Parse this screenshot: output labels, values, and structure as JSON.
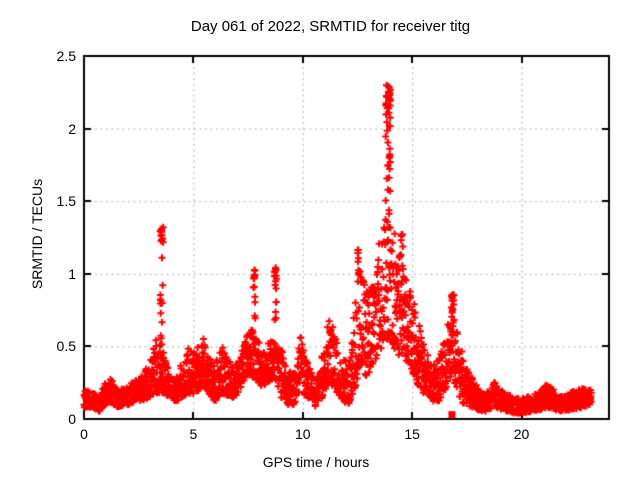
{
  "chart_data": {
    "type": "scatter",
    "title": "Day 061 of 2022, SRMTID for receiver titg",
    "xlabel": "GPS time / hours",
    "ylabel": "SRMTID / TECUs",
    "xlim": [
      0,
      24
    ],
    "ylim": [
      0,
      2.5
    ],
    "xticks": [
      0,
      5,
      10,
      15,
      20
    ],
    "yticks": [
      0,
      0.5,
      1,
      1.5,
      2,
      2.5
    ],
    "grid": {
      "visible": true,
      "style": "dashed"
    },
    "legend": "none",
    "colors": {
      "marker": "#ff0000",
      "grid": "#b0b0b0",
      "border": "#000000",
      "background": "#ffffff",
      "text": "#000000"
    },
    "x_start": 0,
    "x_end": 23.2,
    "sample_step_hours": 0.01,
    "seed": 20220611,
    "series": [
      {
        "name": "SRMTID",
        "marker": "plus",
        "marker_size_px": 7,
        "envelope": [
          [
            0.0,
            0.08,
            0.2
          ],
          [
            0.4,
            0.08,
            0.18
          ],
          [
            0.7,
            0.05,
            0.15
          ],
          [
            1.0,
            0.1,
            0.26
          ],
          [
            1.2,
            0.12,
            0.3
          ],
          [
            1.5,
            0.08,
            0.2
          ],
          [
            1.9,
            0.09,
            0.22
          ],
          [
            2.3,
            0.12,
            0.26
          ],
          [
            2.7,
            0.12,
            0.3
          ],
          [
            3.0,
            0.15,
            0.42
          ],
          [
            3.3,
            0.18,
            0.55
          ],
          [
            3.6,
            0.18,
            0.48
          ],
          [
            3.9,
            0.14,
            0.32
          ],
          [
            4.2,
            0.12,
            0.3
          ],
          [
            4.5,
            0.15,
            0.42
          ],
          [
            4.8,
            0.18,
            0.5
          ],
          [
            5.1,
            0.16,
            0.45
          ],
          [
            5.4,
            0.24,
            0.58
          ],
          [
            5.7,
            0.16,
            0.45
          ],
          [
            6.0,
            0.12,
            0.38
          ],
          [
            6.3,
            0.18,
            0.52
          ],
          [
            6.6,
            0.15,
            0.42
          ],
          [
            6.9,
            0.15,
            0.4
          ],
          [
            7.2,
            0.22,
            0.48
          ],
          [
            7.5,
            0.28,
            0.62
          ],
          [
            7.8,
            0.28,
            0.62
          ],
          [
            8.1,
            0.22,
            0.48
          ],
          [
            8.4,
            0.25,
            0.52
          ],
          [
            8.7,
            0.27,
            0.56
          ],
          [
            9.0,
            0.15,
            0.5
          ],
          [
            9.3,
            0.1,
            0.3
          ],
          [
            9.6,
            0.1,
            0.36
          ],
          [
            9.9,
            0.2,
            0.58
          ],
          [
            10.2,
            0.15,
            0.4
          ],
          [
            10.6,
            0.08,
            0.25
          ],
          [
            10.9,
            0.15,
            0.45
          ],
          [
            11.2,
            0.25,
            0.72
          ],
          [
            11.5,
            0.2,
            0.58
          ],
          [
            11.8,
            0.12,
            0.42
          ],
          [
            12.1,
            0.1,
            0.4
          ],
          [
            12.4,
            0.22,
            0.8
          ],
          [
            12.6,
            0.35,
            1.05
          ],
          [
            12.9,
            0.3,
            0.88
          ],
          [
            13.2,
            0.35,
            1.0
          ],
          [
            13.5,
            0.45,
            1.25
          ],
          [
            13.8,
            0.55,
            1.4
          ],
          [
            14.0,
            0.55,
            1.35
          ],
          [
            14.3,
            0.45,
            1.25
          ],
          [
            14.6,
            0.4,
            1.12
          ],
          [
            14.9,
            0.35,
            0.95
          ],
          [
            15.2,
            0.25,
            0.72
          ],
          [
            15.5,
            0.18,
            0.55
          ],
          [
            15.8,
            0.12,
            0.42
          ],
          [
            16.1,
            0.1,
            0.38
          ],
          [
            16.4,
            0.15,
            0.5
          ],
          [
            16.7,
            0.25,
            0.7
          ],
          [
            16.9,
            0.28,
            0.8
          ],
          [
            17.1,
            0.15,
            0.55
          ],
          [
            17.4,
            0.1,
            0.4
          ],
          [
            17.7,
            0.08,
            0.3
          ],
          [
            18.0,
            0.06,
            0.22
          ],
          [
            18.4,
            0.05,
            0.18
          ],
          [
            18.8,
            0.08,
            0.26
          ],
          [
            19.2,
            0.06,
            0.2
          ],
          [
            19.6,
            0.04,
            0.15
          ],
          [
            20.0,
            0.04,
            0.14
          ],
          [
            20.4,
            0.05,
            0.16
          ],
          [
            20.8,
            0.06,
            0.18
          ],
          [
            21.2,
            0.08,
            0.25
          ],
          [
            21.6,
            0.06,
            0.18
          ],
          [
            22.0,
            0.05,
            0.16
          ],
          [
            22.4,
            0.07,
            0.2
          ],
          [
            22.8,
            0.08,
            0.22
          ],
          [
            23.2,
            0.1,
            0.2
          ]
        ],
        "spikes": [
          {
            "x": 3.55,
            "w": 0.14,
            "base": 0.45,
            "top": 1.33,
            "n": 26,
            "top_bias": 0.45
          },
          {
            "x": 7.78,
            "w": 0.1,
            "base": 0.62,
            "top": 1.03,
            "n": 16,
            "top_bias": 0.5
          },
          {
            "x": 8.75,
            "w": 0.1,
            "base": 0.56,
            "top": 1.06,
            "n": 16,
            "top_bias": 0.5
          },
          {
            "x": 12.55,
            "w": 0.1,
            "base": 1.0,
            "top": 1.18,
            "n": 8,
            "top_bias": 0.3
          },
          {
            "x": 13.9,
            "w": 0.22,
            "base": 1.35,
            "top": 2.31,
            "n": 48,
            "top_bias": 0.35
          },
          {
            "x": 14.55,
            "w": 0.15,
            "base": 1.1,
            "top": 1.3,
            "n": 5,
            "top_bias": 0.2
          },
          {
            "x": 16.85,
            "w": 0.12,
            "base": 0.45,
            "top": 0.86,
            "n": 18,
            "top_bias": 0.4
          }
        ]
      },
      {
        "name": "flagged-point",
        "marker": "filled-square",
        "marker_size_px": 7,
        "points": [
          [
            16.82,
            0.03
          ]
        ]
      }
    ]
  }
}
